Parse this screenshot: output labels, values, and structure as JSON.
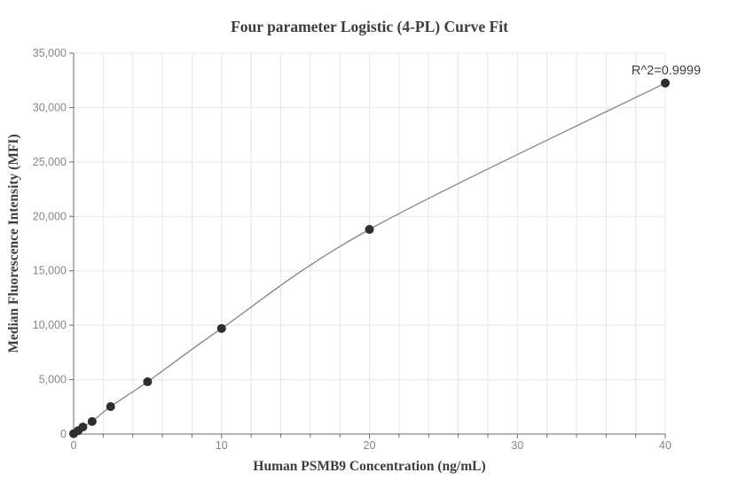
{
  "chart": {
    "title": "Four parameter Logistic (4-PL) Curve Fit",
    "xlabel": "Human PSMB9 Concentration (ng/mL)",
    "ylabel": "Median Fluorescence Intensity (MFI)",
    "annotation": "R^2=0.9999"
  },
  "chart_data": {
    "type": "scatter",
    "title": "Four parameter Logistic (4-PL) Curve Fit",
    "xlabel": "Human PSMB9 Concentration (ng/mL)",
    "ylabel": "Median Fluorescence Intensity (MFI)",
    "annotation": "R^2=0.9999",
    "x": [
      0,
      0.313,
      0.625,
      1.25,
      2.5,
      5,
      10,
      20,
      40
    ],
    "y": [
      30,
      310,
      640,
      1150,
      2520,
      4800,
      9700,
      18800,
      32250
    ],
    "fit": "4PL curve through all points",
    "xlim": [
      0,
      40
    ],
    "ylim": [
      0,
      35000
    ],
    "xticks_major": [
      0,
      10,
      20,
      30,
      40
    ],
    "xtick_labels": [
      "0",
      "10",
      "20",
      "30",
      "40"
    ],
    "xtick_minor_step": 2,
    "yticks": [
      0,
      5000,
      10000,
      15000,
      20000,
      25000,
      30000,
      35000
    ],
    "ytick_labels": [
      "0",
      "5,000",
      "10,000",
      "15,000",
      "20,000",
      "25,000",
      "30,000",
      "35,000"
    ],
    "grid": {
      "x_step": 2,
      "y_step": 5000,
      "shown": true
    },
    "legend": "none",
    "colors": {
      "background": "#ffffff",
      "gridline": "#dfe7f0",
      "axis": "#686d75",
      "tick_label": "#84878c",
      "curve": "#838383",
      "point": "#2e2e2e",
      "title": "#3d3d3d",
      "annotation_text": "#3f3f3f"
    }
  }
}
